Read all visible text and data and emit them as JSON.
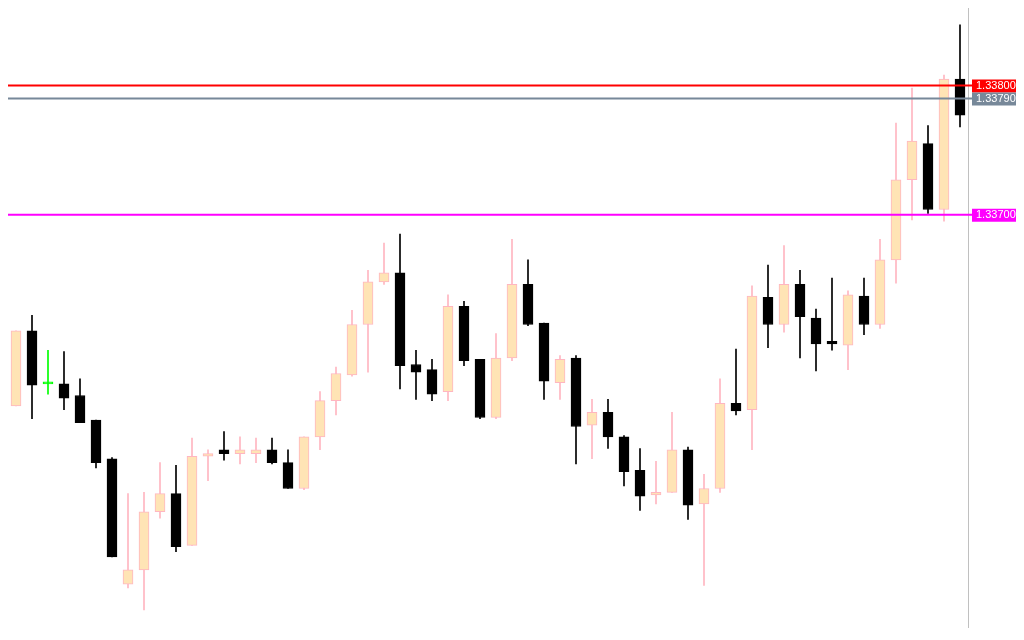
{
  "chart_data": {
    "type": "candlestick",
    "categories": [
      null,
      null,
      null,
      null,
      null,
      null,
      null,
      null,
      null,
      null,
      null,
      null,
      null,
      null,
      null,
      null,
      null,
      null,
      null,
      null,
      null,
      null,
      null,
      null,
      null,
      null,
      null,
      null,
      null,
      null,
      null,
      null,
      null,
      null,
      null,
      null,
      null,
      null,
      null,
      null,
      null,
      null,
      null,
      null,
      null,
      null,
      null,
      null,
      null,
      null,
      null,
      null,
      null,
      null,
      null,
      null,
      null,
      null,
      null,
      null
    ],
    "ohlc": [
      [
        1.33552,
        1.3361,
        1.33552,
        1.3361
      ],
      [
        1.3361,
        1.33622,
        1.33542,
        1.33568
      ],
      [
        1.33569,
        1.33595,
        1.33561,
        1.33569
      ],
      [
        1.33569,
        1.33594,
        1.33549,
        1.33558
      ],
      [
        1.3356,
        1.33573,
        1.33539,
        1.33539
      ],
      [
        1.33541,
        1.33541,
        1.33504,
        1.33508
      ],
      [
        1.33511,
        1.33512,
        1.33435,
        1.33435
      ],
      [
        1.33414,
        1.33484,
        1.33411,
        1.33425
      ],
      [
        1.33425,
        1.33485,
        1.33394,
        1.3347
      ],
      [
        1.3347,
        1.33508,
        1.33465,
        1.33484
      ],
      [
        1.33484,
        1.33506,
        1.33439,
        1.33443
      ],
      [
        1.33444,
        1.33527,
        1.33444,
        1.33513
      ],
      [
        1.33513,
        1.33518,
        1.33494,
        1.33515
      ],
      [
        1.33518,
        1.33532,
        1.3351,
        1.33515
      ],
      [
        1.33515,
        1.33528,
        1.33507,
        1.33518
      ],
      [
        1.33515,
        1.33527,
        1.33508,
        1.33518
      ],
      [
        1.33518,
        1.33527,
        1.33507,
        1.33508
      ],
      [
        1.33508,
        1.33518,
        1.33488,
        1.33488
      ],
      [
        1.33488,
        1.33528,
        1.33487,
        1.33528
      ],
      [
        1.33528,
        1.33563,
        1.33518,
        1.33556
      ],
      [
        1.33556,
        1.33582,
        1.33545,
        1.33577
      ],
      [
        1.33576,
        1.33626,
        1.33575,
        1.33615
      ],
      [
        1.33615,
        1.33657,
        1.33578,
        1.33648
      ],
      [
        1.33648,
        1.33678,
        1.33646,
        1.33655
      ],
      [
        1.33655,
        1.33685,
        1.33565,
        1.33583
      ],
      [
        1.33584,
        1.33595,
        1.33557,
        1.33578
      ],
      [
        1.3358,
        1.33588,
        1.33556,
        1.33561
      ],
      [
        1.33563,
        1.33638,
        1.33556,
        1.33629
      ],
      [
        1.33629,
        1.33633,
        1.33583,
        1.33587
      ],
      [
        1.33588,
        1.33588,
        1.33542,
        1.33543
      ],
      [
        1.33543,
        1.33608,
        1.33542,
        1.33589
      ],
      [
        1.33589,
        1.33681,
        1.33587,
        1.33646
      ],
      [
        1.33646,
        1.33665,
        1.33614,
        1.33615
      ],
      [
        1.33616,
        1.33616,
        1.33557,
        1.33571
      ],
      [
        1.3357,
        1.33591,
        1.33557,
        1.33588
      ],
      [
        1.33589,
        1.33591,
        1.33507,
        1.33536
      ],
      [
        1.33537,
        1.33557,
        1.33511,
        1.33547
      ],
      [
        1.33547,
        1.33557,
        1.33519,
        1.33528
      ],
      [
        1.33528,
        1.33529,
        1.3349,
        1.33501
      ],
      [
        1.33502,
        1.33519,
        1.33471,
        1.33482
      ],
      [
        1.33483,
        1.33509,
        1.33476,
        1.33485
      ],
      [
        1.33485,
        1.33547,
        1.33485,
        1.33518
      ],
      [
        1.33518,
        1.3352,
        1.33464,
        1.33475
      ],
      [
        1.33476,
        1.33499,
        1.33413,
        1.33488
      ],
      [
        1.33488,
        1.33573,
        1.33485,
        1.33554
      ],
      [
        1.33554,
        1.33596,
        1.33545,
        1.33548
      ],
      [
        1.33549,
        1.33645,
        1.33518,
        1.33637
      ],
      [
        1.33636,
        1.33661,
        1.33597,
        1.33615
      ],
      [
        1.33615,
        1.33676,
        1.33609,
        1.33646
      ],
      [
        1.33646,
        1.33657,
        1.33589,
        1.33621
      ],
      [
        1.3362,
        1.33627,
        1.33579,
        1.336
      ],
      [
        1.33602,
        1.33651,
        1.33595,
        1.336
      ],
      [
        1.33599,
        1.33641,
        1.3358,
        1.33638
      ],
      [
        1.33637,
        1.33651,
        1.33607,
        1.33615
      ],
      [
        1.33615,
        1.33681,
        1.33612,
        1.33665
      ],
      [
        1.33665,
        1.33771,
        1.33647,
        1.33727
      ],
      [
        1.33727,
        1.33798,
        1.33696,
        1.33757
      ],
      [
        1.33755,
        1.33769,
        1.33701,
        1.33704
      ],
      [
        1.33704,
        1.33808,
        1.33695,
        1.33805
      ],
      [
        1.33805,
        1.33847,
        1.33768,
        1.33777
      ]
    ],
    "color": "#ffe4b5",
    "colors": [
      "#ffb6c1",
      "#000000",
      "#00ff00",
      "#000000",
      "#000000",
      "#000000",
      "#000000",
      "#ffb6c1",
      "#ffb6c1",
      "#ffb6c1",
      "#000000",
      "#ffb6c1",
      "#ffb6c1",
      "#000000",
      "#ffb6c1",
      "#ffb6c1",
      "#000000",
      "#000000",
      "#ffb6c1",
      "#ffb6c1",
      "#ffb6c1",
      "#ffb6c1",
      "#ffb6c1",
      "#ffb6c1",
      "#000000",
      "#000000",
      "#000000",
      "#ffb6c1",
      "#000000",
      "#000000",
      "#ffb6c1",
      "#ffb6c1",
      "#000000",
      "#000000",
      "#ffb6c1",
      "#000000",
      "#ffb6c1",
      "#000000",
      "#000000",
      "#000000",
      "#ffb6c1",
      "#ffb6c1",
      "#000000",
      "#ffb6c1",
      "#ffb6c1",
      "#000000",
      "#ffb6c1",
      "#000000",
      "#ffb6c1",
      "#000000",
      "#000000",
      "#000000",
      "#ffb6c1",
      "#000000",
      "#ffb6c1",
      "#ffb6c1",
      "#ffb6c1",
      "#000000",
      "#ffb6c1",
      "#000000"
    ],
    "ylim": [
      1.3338,
      1.3386
    ],
    "tick_labels": false,
    "ref_lines": [
      {
        "axis": "y",
        "value": 1.338,
        "label": "1.33800",
        "color": "#ff0000"
      },
      {
        "axis": "y",
        "value": 1.3379,
        "label": "1.33790",
        "color": "#778899"
      },
      {
        "axis": "y",
        "value": 1.337,
        "label": "1.33700",
        "color": "#ff00ff"
      }
    ]
  }
}
